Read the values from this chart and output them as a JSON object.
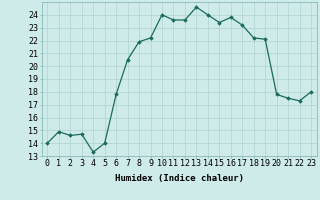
{
  "x": [
    0,
    1,
    2,
    3,
    4,
    5,
    6,
    7,
    8,
    9,
    10,
    11,
    12,
    13,
    14,
    15,
    16,
    17,
    18,
    19,
    20,
    21,
    22,
    23
  ],
  "y": [
    14.0,
    14.9,
    14.6,
    14.7,
    13.3,
    14.0,
    17.8,
    20.5,
    21.9,
    22.2,
    24.0,
    23.6,
    23.6,
    24.6,
    24.0,
    23.4,
    23.8,
    23.2,
    22.2,
    22.1,
    17.8,
    17.5,
    17.3,
    18.0
  ],
  "line_color": "#1a6b5a",
  "marker": "D",
  "marker_size": 1.8,
  "bg_color": "#ceeae9",
  "grid_color": "#aed4d2",
  "xlabel": "Humidex (Indice chaleur)",
  "ylim": [
    13,
    25
  ],
  "xlim": [
    -0.5,
    23.5
  ],
  "yticks": [
    13,
    14,
    15,
    16,
    17,
    18,
    19,
    20,
    21,
    22,
    23,
    24
  ],
  "xticks": [
    0,
    1,
    2,
    3,
    4,
    5,
    6,
    7,
    8,
    9,
    10,
    11,
    12,
    13,
    14,
    15,
    16,
    17,
    18,
    19,
    20,
    21,
    22,
    23
  ],
  "xlabel_fontsize": 6.5,
  "tick_fontsize": 6.0,
  "linewidth": 0.9
}
